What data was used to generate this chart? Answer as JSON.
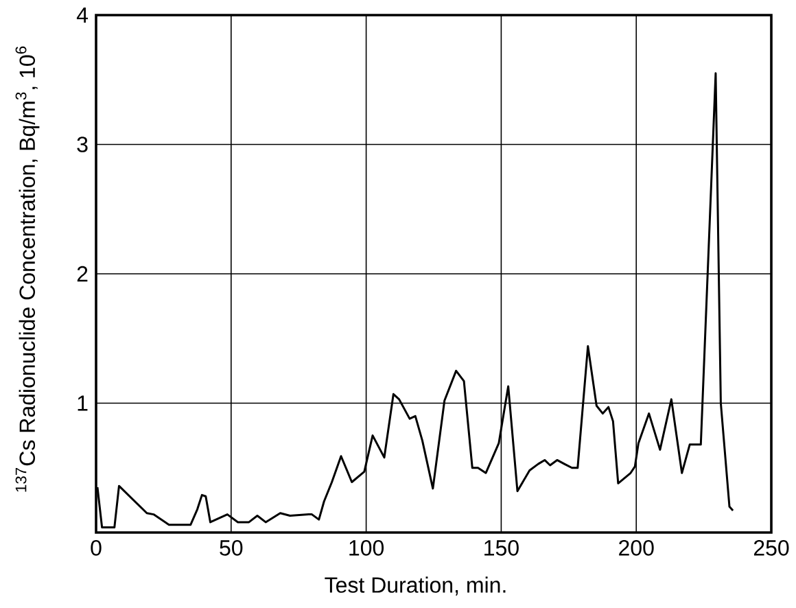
{
  "chart_data": {
    "type": "line",
    "xlabel": "Test Duration, min.",
    "ylabel": "$^{137}$Cs Radionuclide Concentration, Bq/m$^{3}$, 10$^{6}$",
    "x": [
      0.5,
      2.2,
      6.8,
      8.5,
      18.8,
      21.3,
      27,
      35,
      37.5,
      39.2,
      40.6,
      42.3,
      48.6,
      52.5,
      56.6,
      59.7,
      62.8,
      68.2,
      71.8,
      78.7,
      79.9,
      82.5,
      84.4,
      87.3,
      90.7,
      94.7,
      99.3,
      102.4,
      106.7,
      110.1,
      112.2,
      116.1,
      118.2,
      120.8,
      124.7,
      129,
      133.3,
      136.2,
      139.3,
      141.4,
      144.3,
      149.1,
      152.6,
      156,
      160.5,
      163.7,
      166.1,
      168.1,
      170.7,
      173.4,
      176.2,
      178.3,
      182.1,
      185.3,
      187.6,
      189.7,
      191.4,
      193.3,
      197.9,
      199.5,
      200.8,
      204.7,
      208.8,
      213,
      216.9,
      219.8,
      223.9,
      229.4,
      231.3,
      234.5,
      235.8
    ],
    "values": [
      0.35,
      0.04,
      0.04,
      0.36,
      0.15,
      0.14,
      0.06,
      0.06,
      0.18,
      0.29,
      0.28,
      0.08,
      0.14,
      0.08,
      0.08,
      0.13,
      0.08,
      0.15,
      0.13,
      0.14,
      0.14,
      0.1,
      0.24,
      0.39,
      0.59,
      0.39,
      0.47,
      0.75,
      0.58,
      1.07,
      1.03,
      0.88,
      0.9,
      0.71,
      0.34,
      1.02,
      1.25,
      1.17,
      0.5,
      0.5,
      0.46,
      0.69,
      1.13,
      0.32,
      0.48,
      0.53,
      0.56,
      0.52,
      0.56,
      0.53,
      0.5,
      0.5,
      1.44,
      0.98,
      0.92,
      0.97,
      0.86,
      0.38,
      0.46,
      0.51,
      0.69,
      0.92,
      0.64,
      1.03,
      0.46,
      0.68,
      0.68,
      3.55,
      1.0,
      0.2,
      0.17
    ],
    "color": "#000000",
    "xlim": [
      0,
      250
    ],
    "ylim": [
      0,
      4
    ],
    "xticks": [
      0,
      50,
      100,
      150,
      200,
      250
    ],
    "yticks": [
      1,
      2,
      3,
      4
    ],
    "grid": true,
    "marker": "none"
  }
}
